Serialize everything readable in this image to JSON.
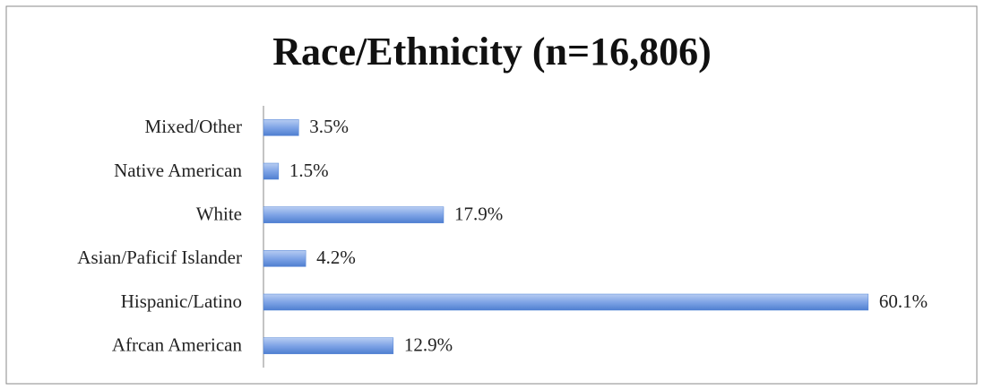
{
  "chart_data": {
    "type": "hbar",
    "title": "Race/Ethnicity (n=16,806)",
    "categories": [
      "Mixed/Other",
      "Native American",
      "White",
      "Asian/Paficif Islander",
      "Hispanic/Latino",
      "Afrcan American"
    ],
    "values": [
      3.5,
      1.5,
      17.9,
      4.2,
      60.1,
      12.9
    ],
    "value_labels": [
      "3.5%",
      "1.5%",
      "17.9%",
      "4.2%",
      "60.1%",
      "12.9%"
    ],
    "color": "#4f81d4",
    "xlim": [
      0,
      70
    ]
  }
}
